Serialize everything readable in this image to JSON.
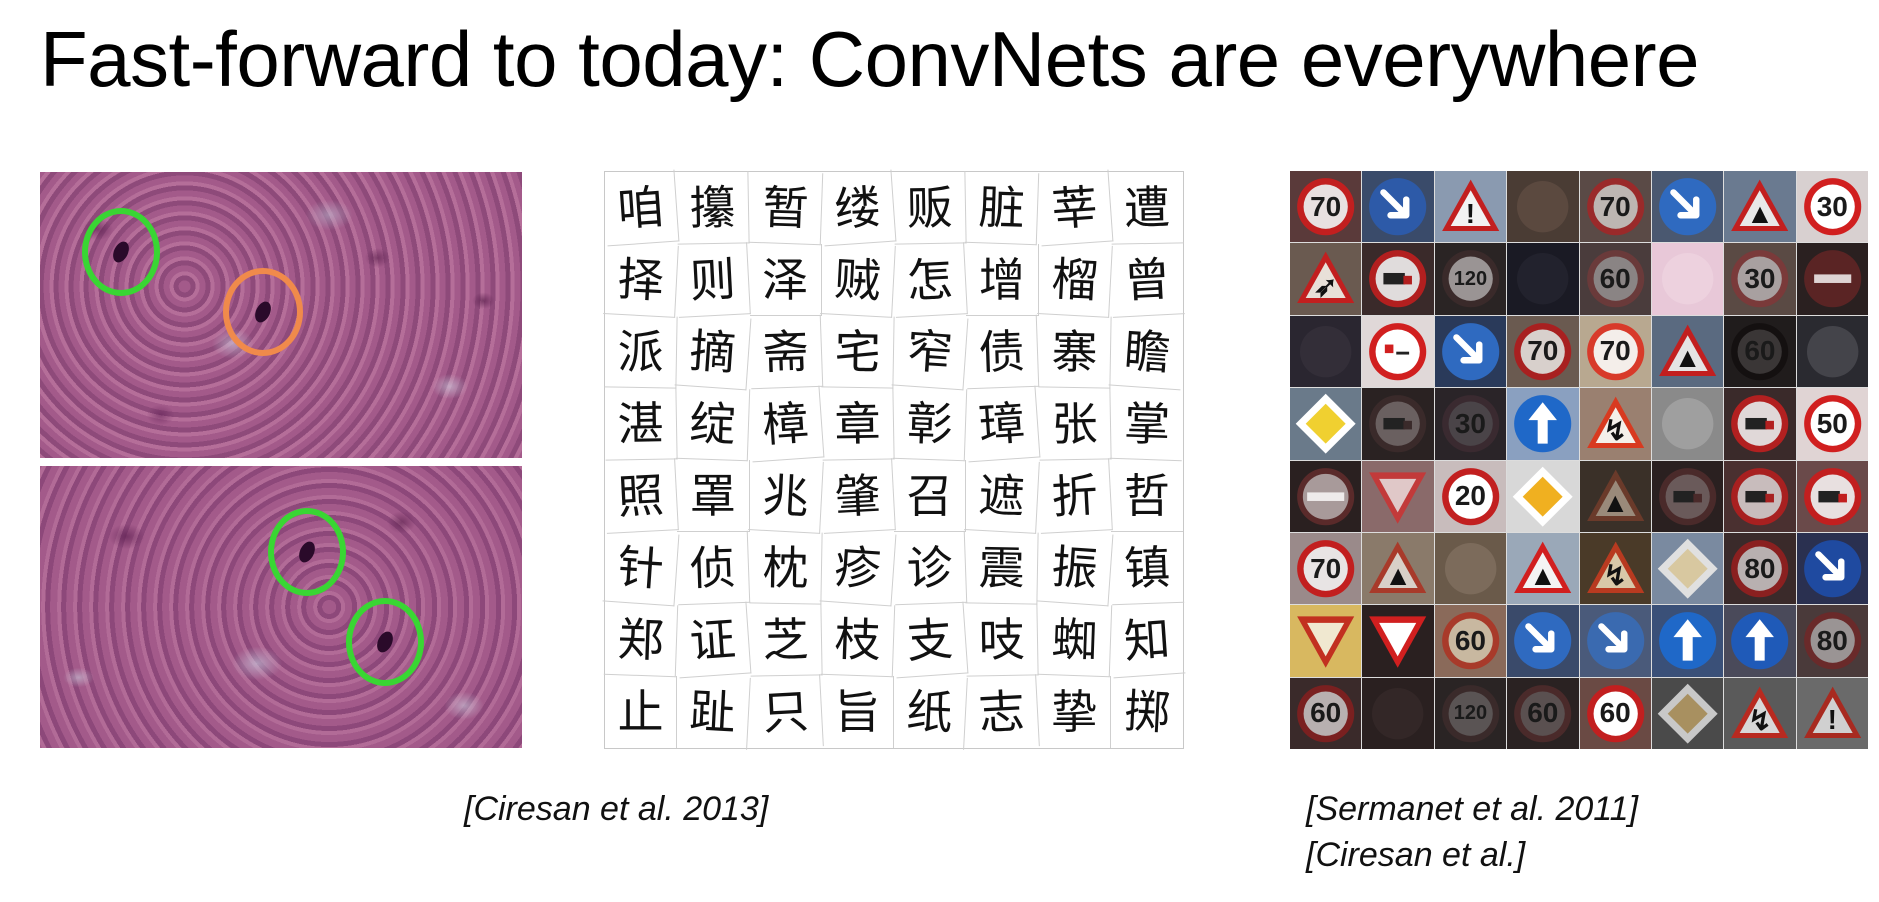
{
  "slide": {
    "title": "Fast-forward to today: ConvNets are everywhere"
  },
  "histology": {
    "top_circles": [
      {
        "color": "#39d633"
      },
      {
        "color": "#f08a4b"
      }
    ],
    "bottom_circles": [
      {
        "color": "#39d633"
      },
      {
        "color": "#39d633"
      }
    ]
  },
  "characters": {
    "rows": [
      [
        "咱",
        "攥",
        "暂",
        "缕",
        "贩",
        "脏",
        "莘",
        "遭"
      ],
      [
        "择",
        "则",
        "泽",
        "贼",
        "怎",
        "增",
        "榴",
        "曾"
      ],
      [
        "派",
        "摘",
        "斋",
        "宅",
        "窄",
        "债",
        "寨",
        "瞻"
      ],
      [
        "湛",
        "绽",
        "樟",
        "章",
        "彰",
        "璋",
        "张",
        "掌"
      ],
      [
        "照",
        "罩",
        "兆",
        "肇",
        "召",
        "遮",
        "折",
        "哲"
      ],
      [
        "针",
        "侦",
        "枕",
        "疹",
        "诊",
        "震",
        "振",
        "镇"
      ],
      [
        "郑",
        "证",
        "芝",
        "枝",
        "支",
        "吱",
        "蜘",
        "知"
      ],
      [
        "止",
        "趾",
        "只",
        "旨",
        "纸",
        "志",
        "挚",
        "掷"
      ]
    ]
  },
  "signs": {
    "cells": [
      {
        "kind": "speed",
        "text": "70",
        "bg": "#5a3a3a",
        "face": "#e8e0e0",
        "ring": "#c21f1f"
      },
      {
        "kind": "arrow-blue",
        "text": "",
        "bg": "#3a4b6a",
        "face": "#2d5aa8",
        "ring": "#2d5aa8"
      },
      {
        "kind": "triangle",
        "text": "!",
        "bg": "#8a9ab0",
        "face": "#f2f2f2",
        "ring": "#c21f1f"
      },
      {
        "kind": "dark",
        "text": "",
        "bg": "#4a3c34",
        "face": "#6a5448",
        "ring": "#6a5448"
      },
      {
        "kind": "speed",
        "text": "70",
        "bg": "#5a4a46",
        "face": "#bdb6b2",
        "ring": "#9a2a2a"
      },
      {
        "kind": "arrow-blue",
        "text": "",
        "bg": "#4a5870",
        "face": "#2f6ac0",
        "ring": "#2f6ac0"
      },
      {
        "kind": "triangle",
        "text": "▲",
        "bg": "#6a7a90",
        "face": "#e8e8e8",
        "ring": "#c21f1f"
      },
      {
        "kind": "speed",
        "text": "30",
        "bg": "#d8d0d0",
        "face": "#ffffff",
        "ring": "#d11f1f"
      },
      {
        "kind": "triangle",
        "text": "➶",
        "bg": "#6a5a50",
        "face": "#e8e0d8",
        "ring": "#c21f1f"
      },
      {
        "kind": "truck",
        "text": "",
        "bg": "#3a2a2a",
        "face": "#e0dcdc",
        "ring": "#b21f1f"
      },
      {
        "kind": "speed",
        "text": "120",
        "bg": "#2a2424",
        "face": "#9a9494",
        "ring": "#3a2a2a"
      },
      {
        "kind": "dark",
        "text": "",
        "bg": "#1a1a24",
        "face": "#2a2a34",
        "ring": "#2a2a34"
      },
      {
        "kind": "speed",
        "text": "60",
        "bg": "#4a3c3c",
        "face": "#8a8484",
        "ring": "#6a3a3a"
      },
      {
        "kind": "dark",
        "text": "",
        "bg": "#e8c8d8",
        "face": "#f0d8e4",
        "ring": "#f0d8e4"
      },
      {
        "kind": "speed",
        "text": "30",
        "bg": "#5a4a44",
        "face": "#a8a0a0",
        "ring": "#7a3a3a"
      },
      {
        "kind": "noentry",
        "text": "",
        "bg": "#2a2020",
        "face": "#5a2424",
        "ring": "#5a2424"
      },
      {
        "kind": "dark",
        "text": "",
        "bg": "#2a2630",
        "face": "#3a3440",
        "ring": "#3a3440"
      },
      {
        "kind": "noentry-white",
        "text": "",
        "bg": "#e0d8d8",
        "face": "#ffffff",
        "ring": "#d11f1f"
      },
      {
        "kind": "arrow-blue",
        "text": "",
        "bg": "#2a3a5a",
        "face": "#2f6ac0",
        "ring": "#2f6ac0"
      },
      {
        "kind": "speed",
        "text": "70",
        "bg": "#6a5a50",
        "face": "#d8d0cc",
        "ring": "#a82020"
      },
      {
        "kind": "speed",
        "text": "70",
        "bg": "#b8a890",
        "face": "#f4eeea",
        "ring": "#d83a2a"
      },
      {
        "kind": "triangle",
        "text": "▲",
        "bg": "#5a6a80",
        "face": "#e4e4e4",
        "ring": "#c21f1f"
      },
      {
        "kind": "speed",
        "text": "60",
        "bg": "#201c1c",
        "face": "#3a3636",
        "ring": "#141010"
      },
      {
        "kind": "dark",
        "text": "",
        "bg": "#2a2a30",
        "face": "#5a5a60",
        "ring": "#5a5a60"
      },
      {
        "kind": "diamond",
        "text": "",
        "bg": "#6a7a8a",
        "face": "#f0d030",
        "ring": "#ffffff"
      },
      {
        "kind": "truck",
        "text": "",
        "bg": "#2a2222",
        "face": "#6a6060",
        "ring": "#3a2a2a"
      },
      {
        "kind": "speed",
        "text": "30",
        "bg": "#2a2428",
        "face": "#4a4448",
        "ring": "#3a2a30"
      },
      {
        "kind": "arrow-up",
        "text": "",
        "bg": "#8aa0c0",
        "face": "#1f68c8",
        "ring": "#1f68c8"
      },
      {
        "kind": "triangle",
        "text": "↯",
        "bg": "#9a8070",
        "face": "#f4f0ea",
        "ring": "#d83a20"
      },
      {
        "kind": "dark",
        "text": "",
        "bg": "#8a8a8a",
        "face": "#b0b0b0",
        "ring": "#b0b0b0"
      },
      {
        "kind": "truck",
        "text": "",
        "bg": "#3a2a2a",
        "face": "#e0d8d8",
        "ring": "#b22020"
      },
      {
        "kind": "speed",
        "text": "50",
        "bg": "#e0d4d4",
        "face": "#ffffff",
        "ring": "#d11f1f"
      },
      {
        "kind": "noentry",
        "text": "",
        "bg": "#2a2020",
        "face": "#a89a9a",
        "ring": "#5a2a2a"
      },
      {
        "kind": "yield",
        "text": "",
        "bg": "#8a6a6a",
        "face": "#e0c8c8",
        "ring": "#c23a3a"
      },
      {
        "kind": "speed",
        "text": "20",
        "bg": "#c8bcbc",
        "face": "#ffffff",
        "ring": "#c21f1f"
      },
      {
        "kind": "diamond",
        "text": "",
        "bg": "#d8d8d8",
        "face": "#f0b020",
        "ring": "#ffffff"
      },
      {
        "kind": "triangle",
        "text": "▲",
        "bg": "#3a3028",
        "face": "#9a8a7a",
        "ring": "#6a3a2a"
      },
      {
        "kind": "truck",
        "text": "",
        "bg": "#2a2020",
        "face": "#6a5a5a",
        "ring": "#4a2a2a"
      },
      {
        "kind": "truck",
        "text": "",
        "bg": "#4a3030",
        "face": "#c8bcbc",
        "ring": "#a82020"
      },
      {
        "kind": "truck",
        "text": "",
        "bg": "#6a4a4a",
        "face": "#e8e0e0",
        "ring": "#c21f1f"
      },
      {
        "kind": "speed",
        "text": "70",
        "bg": "#9a8a8a",
        "face": "#e8e4e4",
        "ring": "#c21f1f"
      },
      {
        "kind": "triangle",
        "text": "▲",
        "bg": "#8a7a6a",
        "face": "#d8d0c8",
        "ring": "#a83a2a"
      },
      {
        "kind": "dark",
        "text": "",
        "bg": "#6a5a4a",
        "face": "#8a7a6a",
        "ring": "#8a7a6a"
      },
      {
        "kind": "triangle",
        "text": "▲",
        "bg": "#9aa8b8",
        "face": "#f4f4f4",
        "ring": "#d11f1f"
      },
      {
        "kind": "triangle",
        "text": "↯",
        "bg": "#4a3a28",
        "face": "#d8c8a8",
        "ring": "#b83a20"
      },
      {
        "kind": "diamond",
        "text": "",
        "bg": "#7a8aa0",
        "face": "#d8c8a0",
        "ring": "#e0e0e0"
      },
      {
        "kind": "speed",
        "text": "80",
        "bg": "#3a2a2a",
        "face": "#b8b0b0",
        "ring": "#8a2020"
      },
      {
        "kind": "arrow-blue",
        "text": "",
        "bg": "#2a3050",
        "face": "#1f4aa0",
        "ring": "#1f4aa0"
      },
      {
        "kind": "yield",
        "text": "",
        "bg": "#d8b860",
        "face": "#f0e8d0",
        "ring": "#c23020"
      },
      {
        "kind": "yield",
        "text": "",
        "bg": "#2a2020",
        "face": "#ffffff",
        "ring": "#d11f1f"
      },
      {
        "kind": "speed",
        "text": "60",
        "bg": "#8a6a5a",
        "face": "#c8b8a0",
        "ring": "#a83a2a"
      },
      {
        "kind": "arrow-blue",
        "text": "",
        "bg": "#3a4a6a",
        "face": "#2f6ac0",
        "ring": "#2f6ac0"
      },
      {
        "kind": "arrow-blue",
        "text": "",
        "bg": "#4a5a7a",
        "face": "#3a6ab0",
        "ring": "#3a6ab0"
      },
      {
        "kind": "arrow-up",
        "text": "",
        "bg": "#3a5078",
        "face": "#1f68c8",
        "ring": "#1f68c8"
      },
      {
        "kind": "arrow-up",
        "text": "",
        "bg": "#4a4a5a",
        "face": "#1f5ab8",
        "ring": "#1f5ab8"
      },
      {
        "kind": "speed",
        "text": "80",
        "bg": "#4a3a3a",
        "face": "#9a9494",
        "ring": "#6a2a2a"
      },
      {
        "kind": "speed",
        "text": "60",
        "bg": "#3a2a2a",
        "face": "#b8b0b0",
        "ring": "#7a2020"
      },
      {
        "kind": "dark",
        "text": "",
        "bg": "#2a2020",
        "face": "#3a2e2e",
        "ring": "#3a2e2e"
      },
      {
        "kind": "speed",
        "text": "120",
        "bg": "#2a2424",
        "face": "#5a5454",
        "ring": "#3a2a2a"
      },
      {
        "kind": "speed",
        "text": "60",
        "bg": "#2a2222",
        "face": "#5a5050",
        "ring": "#4a2a2a"
      },
      {
        "kind": "speed",
        "text": "60",
        "bg": "#6a4a44",
        "face": "#ffffff",
        "ring": "#c21f1f"
      },
      {
        "kind": "diamond",
        "text": "",
        "bg": "#4a4a4a",
        "face": "#a89060",
        "ring": "#c8c8c8"
      },
      {
        "kind": "triangle",
        "text": "↯",
        "bg": "#5a5a5a",
        "face": "#d8d8d8",
        "ring": "#b82a20"
      },
      {
        "kind": "triangle",
        "text": "!",
        "bg": "#6a6a6a",
        "face": "#d0d0d0",
        "ring": "#a82a20"
      }
    ]
  },
  "citations": {
    "ciresan_2013": "[Ciresan et al. 2013]",
    "sermanet_2011": "[Sermanet et al. 2011]",
    "ciresan": "[Ciresan et al.]"
  }
}
